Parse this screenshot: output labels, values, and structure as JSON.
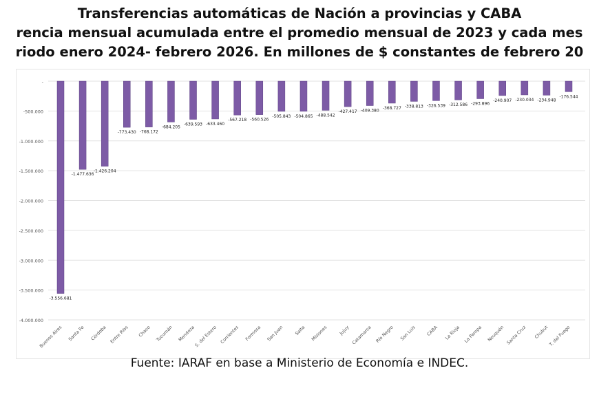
{
  "title_lines": [
    "Transferencias automáticas de Nación a provincias y CABA",
    "rencia mensual acumulada entre el promedio mensual de 2023 y cada mes",
    "riodo enero 2024- febrero 2026. En millones de $ constantes de febrero 20"
  ],
  "source": "Fuente: IARAF en base a Ministerio de Economía e INDEC.",
  "chart_data": {
    "type": "bar",
    "bar_color": "#7d5ba6",
    "grid": true,
    "ylim": [
      -4000000,
      0
    ],
    "yticks": [
      0,
      -500000,
      -1000000,
      -1500000,
      -2000000,
      -2500000,
      -3000000,
      -3500000,
      -4000000
    ],
    "ytick_labels": [
      "-",
      "-500.000",
      "-1.000.000",
      "-1.500.000",
      "-2.000.000",
      "-2.500.000",
      "-3.000.000",
      "-3.500.000",
      "-4.000.000"
    ],
    "categories": [
      "Buenos Aires",
      "Santa Fe",
      "Córdoba",
      "Entre Ríos",
      "Chaco",
      "Tucumán",
      "Mendoza",
      "S. del Estero",
      "Corrientes",
      "Formosa",
      "San Juan",
      "Salta",
      "Misiones",
      "Jujuy",
      "Catamarca",
      "Río Negro",
      "San Luis",
      "CABA",
      "La Rioja",
      "La Pampa",
      "Neuquén",
      "Santa Cruz",
      "Chubut",
      "T. del Fuego"
    ],
    "values": [
      -3556681,
      -1477636,
      -1426204,
      -773430,
      -768172,
      -684205,
      -639593,
      -633460,
      -567218,
      -560526,
      -505843,
      -504865,
      -488542,
      -427417,
      -409380,
      -368727,
      -338813,
      -326539,
      -312586,
      -293896,
      -240907,
      -230034,
      -234948,
      -176544
    ],
    "data_labels": [
      "-3.556.681",
      "-1.477.636",
      "-1.426.204",
      "-773.430",
      "-768.172",
      "-684.205",
      "-639.593",
      "-633.460",
      "-567.218",
      "-560.526",
      "-505.843",
      "-504.865",
      "-488.542",
      "-427.417",
      "-409.380",
      "-368.727",
      "-338.813",
      "-326.539",
      "-312.586",
      "-293.896",
      "-240.907",
      "-230.034",
      "-234.948",
      "-176.544"
    ]
  }
}
